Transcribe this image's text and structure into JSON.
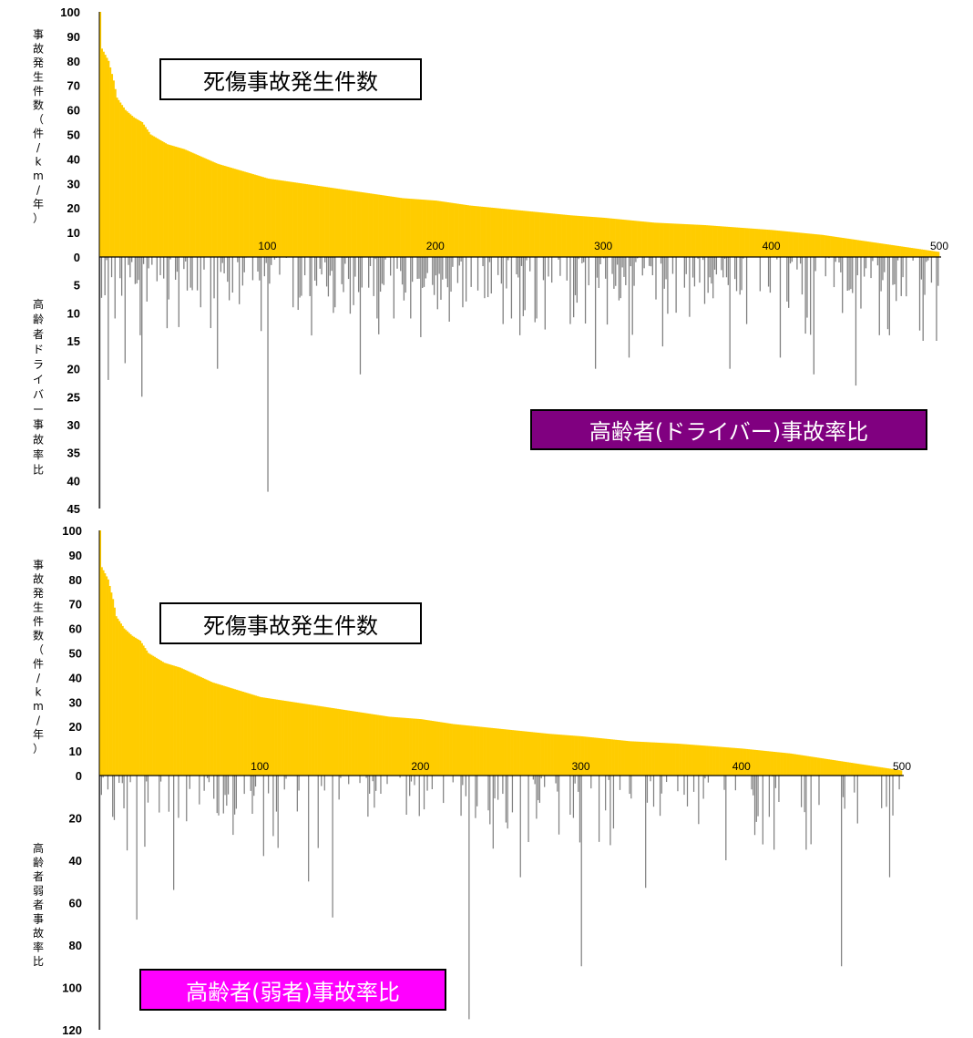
{
  "colors": {
    "fatal_bar": "#ffcc00",
    "ratio_bar": "#808080",
    "axis": "#000000"
  },
  "chart_data": [
    {
      "type": "bar",
      "title": "死傷事故発生件数",
      "upper": {
        "label": "死傷事故発生件数",
        "ylabel": "事故発生件数（件/km/年）",
        "ylim": [
          0,
          100
        ],
        "yticks": [
          "100",
          "90",
          "80",
          "70",
          "60",
          "50",
          "40",
          "30",
          "20",
          "10",
          "0"
        ],
        "color": "#ffcc00",
        "profile": [
          [
            0,
            100
          ],
          [
            1,
            85
          ],
          [
            5,
            80
          ],
          [
            8,
            72
          ],
          [
            10,
            65
          ],
          [
            15,
            60
          ],
          [
            20,
            57
          ],
          [
            25,
            55
          ],
          [
            30,
            50
          ],
          [
            40,
            46
          ],
          [
            50,
            44
          ],
          [
            60,
            41
          ],
          [
            70,
            38
          ],
          [
            80,
            36
          ],
          [
            90,
            34
          ],
          [
            100,
            32
          ],
          [
            120,
            30
          ],
          [
            140,
            28
          ],
          [
            160,
            26
          ],
          [
            180,
            24
          ],
          [
            200,
            23
          ],
          [
            220,
            21
          ],
          [
            250,
            19
          ],
          [
            280,
            17
          ],
          [
            300,
            16
          ],
          [
            330,
            14
          ],
          [
            360,
            13
          ],
          [
            400,
            11
          ],
          [
            430,
            9
          ],
          [
            460,
            6
          ],
          [
            480,
            4
          ],
          [
            500,
            2
          ]
        ]
      },
      "lower": {
        "label": "高齢者(ドライバー)事故率比",
        "ylabel": "高齢者ドライバー事故率比",
        "ylim": [
          0,
          45
        ],
        "yticks": [
          "0",
          "5",
          "10",
          "15",
          "20",
          "25",
          "30",
          "35",
          "40",
          "45"
        ],
        "color": "#808080",
        "spikes": [
          [
            0,
            45
          ],
          [
            5,
            22
          ],
          [
            9,
            11
          ],
          [
            15,
            19
          ],
          [
            24,
            14
          ],
          [
            25,
            25
          ],
          [
            60,
            9
          ],
          [
            70,
            20
          ],
          [
            100,
            42
          ],
          [
            115,
            9
          ],
          [
            125,
            7
          ],
          [
            140,
            9
          ],
          [
            155,
            21
          ],
          [
            165,
            11
          ],
          [
            175,
            11
          ],
          [
            185,
            11
          ],
          [
            216,
            9
          ],
          [
            225,
            6
          ],
          [
            240,
            12
          ],
          [
            245,
            11
          ],
          [
            250,
            14
          ],
          [
            260,
            11
          ],
          [
            280,
            12
          ],
          [
            295,
            20
          ],
          [
            315,
            18
          ],
          [
            335,
            16
          ],
          [
            375,
            20
          ],
          [
            385,
            12
          ],
          [
            405,
            18
          ],
          [
            425,
            21
          ],
          [
            450,
            23
          ],
          [
            470,
            14
          ],
          [
            490,
            15
          ],
          [
            498,
            15
          ]
        ],
        "seed": 7,
        "density": 0.55,
        "base_max": 8
      },
      "x": {
        "ticks": [
          "100",
          "200",
          "300",
          "400",
          "500"
        ],
        "tick_values": [
          100,
          200,
          300,
          400,
          500
        ],
        "max": 500
      }
    },
    {
      "type": "bar",
      "title": "死傷事故発生件数",
      "upper": {
        "label": "死傷事故発生件数",
        "ylabel": "事故発生件数（件/km/年）",
        "ylim": [
          0,
          100
        ],
        "yticks": [
          "100",
          "90",
          "80",
          "70",
          "60",
          "50",
          "40",
          "30",
          "20",
          "10",
          "0"
        ],
        "color": "#ffcc00",
        "profile": [
          [
            0,
            100
          ],
          [
            1,
            85
          ],
          [
            5,
            80
          ],
          [
            8,
            72
          ],
          [
            10,
            65
          ],
          [
            15,
            60
          ],
          [
            20,
            57
          ],
          [
            25,
            55
          ],
          [
            30,
            50
          ],
          [
            40,
            46
          ],
          [
            50,
            44
          ],
          [
            60,
            41
          ],
          [
            70,
            38
          ],
          [
            80,
            36
          ],
          [
            90,
            34
          ],
          [
            100,
            32
          ],
          [
            120,
            30
          ],
          [
            140,
            28
          ],
          [
            160,
            26
          ],
          [
            180,
            24
          ],
          [
            200,
            23
          ],
          [
            220,
            21
          ],
          [
            250,
            19
          ],
          [
            280,
            17
          ],
          [
            300,
            16
          ],
          [
            330,
            14
          ],
          [
            360,
            13
          ],
          [
            400,
            11
          ],
          [
            430,
            9
          ],
          [
            460,
            6
          ],
          [
            480,
            4
          ],
          [
            500,
            2
          ]
        ]
      },
      "lower": {
        "label": "高齢者(弱者)事故率比",
        "ylabel": "高齢者弱者事故率比",
        "ylim": [
          0,
          120
        ],
        "yticks": [
          "0",
          "20",
          "40",
          "60",
          "80",
          "100",
          "120"
        ],
        "color": "#808080",
        "spikes": [
          [
            0,
            120
          ],
          [
            9,
            21
          ],
          [
            23,
            68
          ],
          [
            46,
            54
          ],
          [
            83,
            28
          ],
          [
            102,
            38
          ],
          [
            130,
            50
          ],
          [
            145,
            67
          ],
          [
            230,
            115
          ],
          [
            243,
            23
          ],
          [
            262,
            48
          ],
          [
            295,
            20
          ],
          [
            300,
            90
          ],
          [
            320,
            25
          ],
          [
            340,
            53
          ],
          [
            390,
            40
          ],
          [
            420,
            35
          ],
          [
            440,
            35
          ],
          [
            462,
            90
          ],
          [
            492,
            48
          ]
        ],
        "seed": 13,
        "density": 0.3,
        "base_max": 20
      },
      "x": {
        "ticks": [
          "100",
          "200",
          "300",
          "400",
          "500"
        ],
        "tick_values": [
          100,
          200,
          300,
          400,
          500
        ],
        "max": 500
      }
    }
  ]
}
